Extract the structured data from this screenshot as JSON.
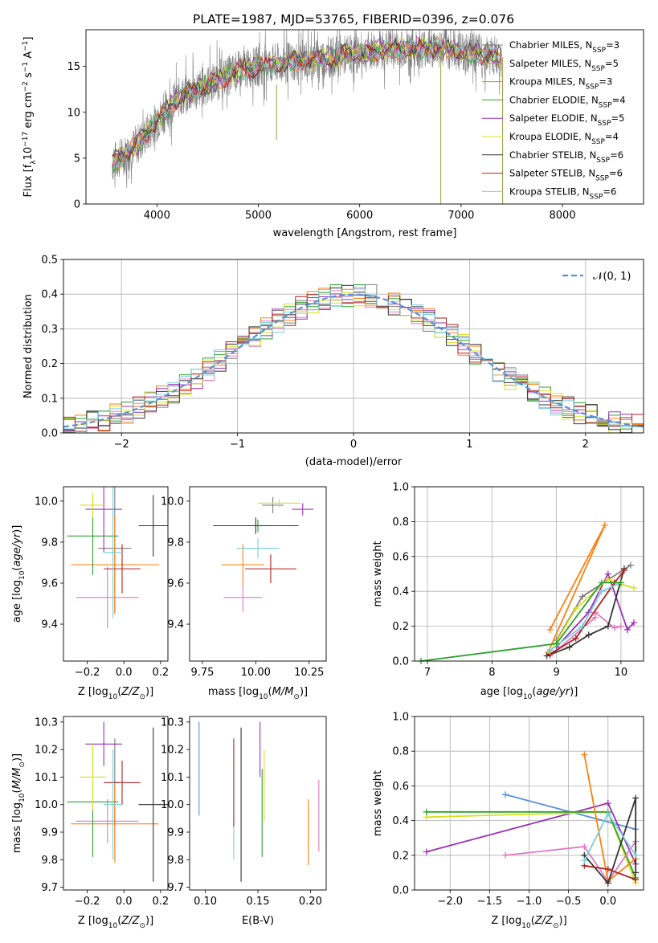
{
  "title": "PLATE=1987, MJD=53765, FIBERID=0396, z=0.076",
  "colors": {
    "chabrier_miles": "#7f7f7f",
    "salpeter_miles": "#e377c2",
    "kroupa_miles": "#ff7f0e",
    "chabrier_elodie": "#2ca02c",
    "salpeter_elodie": "#9b30b6",
    "kroupa_elodie": "#d9e021",
    "chabrier_stelib": "#333333",
    "salpeter_stelib": "#b22222",
    "kroupa_stelib": "#79d0dc",
    "normal": "#5b8fd6"
  },
  "chart_data": [
    {
      "id": "spectrum",
      "type": "line",
      "xlabel": "wavelength [Angstrom, rest frame]",
      "ylabel": "Flux [f_λ10^-17 erg cm^-2 s^-1 A^-1]",
      "xlim": [
        3300,
        8800
      ],
      "ylim": [
        0,
        19
      ],
      "xticks": [
        4000,
        5000,
        6000,
        7000,
        8000
      ],
      "yticks": [
        0,
        5,
        10,
        15
      ],
      "continuum": {
        "x": [
          3560,
          3700,
          3850,
          4000,
          4200,
          4400,
          4600,
          4800,
          5000,
          5300,
          5600,
          5900,
          6200,
          6500,
          6800,
          7100,
          7400
        ],
        "y": [
          4.5,
          5.5,
          7,
          9,
          11.5,
          12.5,
          13.5,
          14.5,
          15,
          15.5,
          15.8,
          16.3,
          16.8,
          17,
          17,
          16.5,
          16
        ]
      },
      "legend_position": "upper-right",
      "series": [
        {
          "name": "Chabrier MILES, N_SSP=3",
          "key": "chabrier_miles"
        },
        {
          "name": "Salpeter MILES, N_SSP=5",
          "key": "salpeter_miles"
        },
        {
          "name": "Kroupa MILES, N_SSP=3",
          "key": "kroupa_miles"
        },
        {
          "name": "Chabrier ELODIE, N_SSP=4",
          "key": "chabrier_elodie"
        },
        {
          "name": "Salpeter ELODIE, N_SSP=5",
          "key": "salpeter_elodie"
        },
        {
          "name": "Kroupa ELODIE, N_SSP=4",
          "key": "kroupa_elodie"
        },
        {
          "name": "Chabrier STELIB, N_SSP=6",
          "key": "chabrier_stelib"
        },
        {
          "name": "Salpeter STELIB, N_SSP=6",
          "key": "salpeter_stelib"
        },
        {
          "name": "Kroupa STELIB, N_SSP=6",
          "key": "kroupa_stelib"
        }
      ]
    },
    {
      "id": "residuals",
      "type": "histogram",
      "xlabel": "(data-model)/error",
      "ylabel": "Normed distribution",
      "xlim": [
        -2.5,
        2.5
      ],
      "ylim": [
        0,
        0.5
      ],
      "xticks": [
        -2,
        -1,
        0,
        1,
        2
      ],
      "yticks": [
        0,
        0.1,
        0.2,
        0.3,
        0.4,
        0.5
      ],
      "bin_width": 0.1,
      "grid": true,
      "legend": "𝒩(0, 1)",
      "legend_position": "upper-right"
    },
    {
      "id": "age_vs_Z",
      "type": "errorbar",
      "xlabel": "Z [log10(Z/Z⊙)]",
      "ylabel": "age  [log10(age/yr)]",
      "xlim": [
        -0.33,
        0.24
      ],
      "ylim": [
        9.22,
        10.07
      ],
      "xticks": [
        -0.2,
        0.0,
        0.2
      ],
      "yticks": [
        9.4,
        9.6,
        9.8,
        10.0
      ],
      "points": [
        {
          "key": "chabrier_miles",
          "x": -0.05,
          "xerr": 0.09,
          "y": 9.77,
          "yerr": 0.32
        },
        {
          "key": "salpeter_miles",
          "x": -0.09,
          "xerr": 0.17,
          "y": 9.53,
          "yerr": 0.15
        },
        {
          "key": "kroupa_miles",
          "x": -0.05,
          "xerr": 0.24,
          "y": 9.69,
          "yerr": 0.24
        },
        {
          "key": "chabrier_elodie",
          "x": -0.17,
          "xerr": 0.14,
          "y": 9.83,
          "yerr": 0.19
        },
        {
          "key": "salpeter_elodie",
          "x": -0.11,
          "xerr": 0.1,
          "y": 9.96,
          "yerr": 0.21
        },
        {
          "key": "kroupa_elodie",
          "x": -0.17,
          "xerr": 0.07,
          "y": 9.98,
          "yerr": 0.06
        },
        {
          "key": "chabrier_stelib",
          "x": 0.16,
          "xerr": 0.08,
          "y": 9.88,
          "yerr": 0.15
        },
        {
          "key": "salpeter_stelib",
          "x": -0.01,
          "xerr": 0.1,
          "y": 9.67,
          "yerr": 0.12
        },
        {
          "key": "kroupa_stelib",
          "x": -0.06,
          "xerr": 0.05,
          "y": 9.75,
          "yerr": 0.32
        }
      ]
    },
    {
      "id": "age_vs_mass",
      "type": "errorbar",
      "xlabel": "mass [log10(M/M⊙)]",
      "ylabel": "",
      "xlim": [
        9.69,
        10.33
      ],
      "ylim": [
        9.22,
        10.07
      ],
      "xticks": [
        9.75,
        10.0,
        10.25
      ],
      "yticks": [
        9.4,
        9.6,
        9.8,
        10.0
      ],
      "points": [
        {
          "key": "chabrier_miles",
          "x": 10.08,
          "xerr": 0.05,
          "y": 9.98,
          "yerr": 0.04
        },
        {
          "key": "salpeter_miles",
          "x": 9.94,
          "xerr": 0.09,
          "y": 9.53,
          "yerr": 0.07
        },
        {
          "key": "kroupa_miles",
          "x": 9.94,
          "xerr": 0.1,
          "y": 9.69,
          "yerr": 0.1
        },
        {
          "key": "chabrier_elodie",
          "x": 10.01,
          "xerr": 0.02,
          "y": 9.88,
          "yerr": 0.03
        },
        {
          "key": "salpeter_elodie",
          "x": 10.22,
          "xerr": 0.05,
          "y": 9.96,
          "yerr": 0.03
        },
        {
          "key": "kroupa_elodie",
          "x": 10.11,
          "xerr": 0.1,
          "y": 9.99,
          "yerr": 0.02
        },
        {
          "key": "chabrier_stelib",
          "x": 10.0,
          "xerr": 0.2,
          "y": 9.88,
          "yerr": 0.04
        },
        {
          "key": "salpeter_stelib",
          "x": 10.07,
          "xerr": 0.12,
          "y": 9.67,
          "yerr": 0.07
        },
        {
          "key": "kroupa_stelib",
          "x": 10.01,
          "xerr": 0.1,
          "y": 9.77,
          "yerr": 0.05
        }
      ]
    },
    {
      "id": "massweight_vs_age",
      "type": "line",
      "xlabel": "age  [log10(age/yr)]",
      "ylabel": "mass weight",
      "xlim": [
        6.8,
        10.35
      ],
      "ylim": [
        0,
        1
      ],
      "xticks": [
        7,
        8,
        9,
        10
      ],
      "yticks": [
        0.0,
        0.2,
        0.4,
        0.6,
        0.8,
        1.0
      ],
      "grid": true,
      "series": [
        {
          "key": "salpeter_miles",
          "x": [
            8.9,
            9.6,
            9.6,
            9.9,
            10.0
          ],
          "y": [
            0.03,
            0.25,
            0.28,
            0.19,
            0.2
          ]
        },
        {
          "key": "kroupa_miles",
          "x": [
            8.9,
            9.75,
            8.87
          ],
          "y": [
            0.18,
            0.78,
            0.05
          ]
        },
        {
          "key": "chabrier_miles",
          "x": [
            9.0,
            9.4,
            10.15
          ],
          "y": [
            0.12,
            0.37,
            0.55
          ]
        },
        {
          "key": "salpeter_elodie",
          "x": [
            9.0,
            9.5,
            9.8,
            10.1,
            10.2
          ],
          "y": [
            0.08,
            0.28,
            0.5,
            0.18,
            0.22
          ]
        },
        {
          "key": "kroupa_elodie",
          "x": [
            8.9,
            9.3,
            9.8,
            10.0,
            10.2
          ],
          "y": [
            0.05,
            0.3,
            0.47,
            0.44,
            0.42
          ]
        },
        {
          "key": "chabrier_stelib",
          "x": [
            8.85,
            9.2,
            9.5,
            9.8,
            10.05
          ],
          "y": [
            0.03,
            0.08,
            0.15,
            0.2,
            0.53
          ]
        },
        {
          "key": "salpeter_stelib",
          "x": [
            8.9,
            9.3,
            9.9,
            10.05
          ],
          "y": [
            0.04,
            0.13,
            0.45,
            0.52
          ]
        },
        {
          "key": "kroupa_stelib",
          "x": [
            8.9,
            9.4,
            9.7,
            10.0
          ],
          "y": [
            0.06,
            0.2,
            0.4,
            0.45
          ]
        },
        {
          "key": "chabrier_elodie",
          "x": [
            6.9,
            9.0,
            9.7,
            10.0
          ],
          "y": [
            0.0,
            0.1,
            0.45,
            0.45
          ]
        }
      ]
    },
    {
      "id": "mass_vs_Z",
      "type": "errorbar",
      "xlabel": "Z [log10(Z/Z⊙)]",
      "ylabel": "mass [log10(M/M⊙)]",
      "xlim": [
        -0.33,
        0.24
      ],
      "ylim": [
        9.69,
        10.32
      ],
      "xticks": [
        -0.2,
        0.0,
        0.2
      ],
      "yticks": [
        9.7,
        9.8,
        9.9,
        10.0,
        10.1,
        10.2,
        10.3
      ],
      "points": [
        {
          "key": "chabrier_miles",
          "x": -0.05,
          "xerr": 0.02,
          "y": 10.08,
          "yerr": 0.16
        },
        {
          "key": "salpeter_miles",
          "x": -0.09,
          "xerr": 0.17,
          "y": 9.94,
          "yerr": 0.08
        },
        {
          "key": "kroupa_miles",
          "x": -0.05,
          "xerr": 0.24,
          "y": 9.93,
          "yerr": 0.14
        },
        {
          "key": "chabrier_elodie",
          "x": -0.17,
          "xerr": 0.14,
          "y": 10.01,
          "yerr": 0.2
        },
        {
          "key": "salpeter_elodie",
          "x": -0.11,
          "xerr": 0.1,
          "y": 10.22,
          "yerr": 0.08
        },
        {
          "key": "kroupa_elodie",
          "x": -0.17,
          "xerr": 0.07,
          "y": 10.1,
          "yerr": 0.12
        },
        {
          "key": "chabrier_stelib",
          "x": 0.16,
          "xerr": 0.08,
          "y": 10.0,
          "yerr": 0.28
        },
        {
          "key": "salpeter_stelib",
          "x": -0.01,
          "xerr": 0.1,
          "y": 10.08,
          "yerr": 0.08
        },
        {
          "key": "kroupa_stelib",
          "x": -0.06,
          "xerr": 0.05,
          "y": 10.0,
          "yerr": 0.2
        }
      ]
    },
    {
      "id": "mass_vs_ebv",
      "type": "errorbar",
      "xlabel": "E(B-V)",
      "ylabel": "",
      "xlim": [
        0.085,
        0.215
      ],
      "ylim": [
        9.69,
        10.32
      ],
      "xticks": [
        0.1,
        0.15,
        0.2
      ],
      "yticks": [
        9.7,
        9.8,
        9.9,
        10.0,
        10.1,
        10.2,
        10.3
      ],
      "points": [
        {
          "key": "normal",
          "x": 0.094,
          "xerr": 0,
          "y": 10.13,
          "yerr": 0.17
        },
        {
          "key": "kroupa_stelib",
          "x": 0.127,
          "xerr": 0,
          "y": 9.97,
          "yerr": 0.17
        },
        {
          "key": "salpeter_stelib",
          "x": 0.127,
          "xerr": 0,
          "y": 10.08,
          "yerr": 0.16
        },
        {
          "key": "chabrier_stelib",
          "x": 0.134,
          "xerr": 0,
          "y": 10.0,
          "yerr": 0.28
        },
        {
          "key": "salpeter_elodie",
          "x": 0.152,
          "xerr": 0,
          "y": 10.2,
          "yerr": 0.1
        },
        {
          "key": "chabrier_elodie",
          "x": 0.154,
          "xerr": 0,
          "y": 9.97,
          "yerr": 0.16
        },
        {
          "key": "kroupa_elodie",
          "x": 0.156,
          "xerr": 0,
          "y": 10.07,
          "yerr": 0.13
        },
        {
          "key": "kroupa_miles",
          "x": 0.198,
          "xerr": 0,
          "y": 9.9,
          "yerr": 0.12
        },
        {
          "key": "salpeter_miles",
          "x": 0.208,
          "xerr": 0,
          "y": 9.96,
          "yerr": 0.13
        }
      ]
    },
    {
      "id": "massweight_vs_Z",
      "type": "line",
      "xlabel": "Z [log10(Z/Z⊙)]",
      "ylabel": "mass weight",
      "xlim": [
        -2.45,
        0.45
      ],
      "ylim": [
        0,
        1
      ],
      "xticks": [
        -2.0,
        -1.5,
        -1.0,
        -0.5,
        0.0
      ],
      "yticks": [
        0.0,
        0.2,
        0.4,
        0.6,
        0.8,
        1.0
      ],
      "grid": true,
      "series": [
        {
          "key": "normal",
          "x": [
            -1.3,
            0.35
          ],
          "y": [
            0.55,
            0.35
          ]
        },
        {
          "key": "salpeter_elodie",
          "x": [
            -2.3,
            0.0,
            0.35
          ],
          "y": [
            0.22,
            0.5,
            0.15
          ]
        },
        {
          "key": "kroupa_elodie",
          "x": [
            -2.3,
            0.0,
            0.35
          ],
          "y": [
            0.42,
            0.45,
            0.04
          ]
        },
        {
          "key": "chabrier_elodie",
          "x": [
            -2.3,
            0.0,
            0.35
          ],
          "y": [
            0.45,
            0.45,
            0.07
          ]
        },
        {
          "key": "salpeter_miles",
          "x": [
            -1.3,
            -0.3,
            0.0,
            0.35
          ],
          "y": [
            0.2,
            0.25,
            0.05,
            0.28
          ]
        },
        {
          "key": "kroupa_miles",
          "x": [
            -0.3,
            0.0,
            0.35
          ],
          "y": [
            0.78,
            0.05,
            0.18
          ]
        },
        {
          "key": "chabrier_stelib",
          "x": [
            -0.3,
            0.0,
            0.35,
            0.35
          ],
          "y": [
            0.2,
            0.04,
            0.53,
            0.1
          ]
        },
        {
          "key": "salpeter_stelib",
          "x": [
            -0.3,
            0.0,
            0.35
          ],
          "y": [
            0.14,
            0.12,
            0.06
          ]
        },
        {
          "key": "kroupa_stelib",
          "x": [
            -0.3,
            0.0,
            0.35
          ],
          "y": [
            0.17,
            0.44,
            0.2
          ]
        }
      ]
    }
  ]
}
